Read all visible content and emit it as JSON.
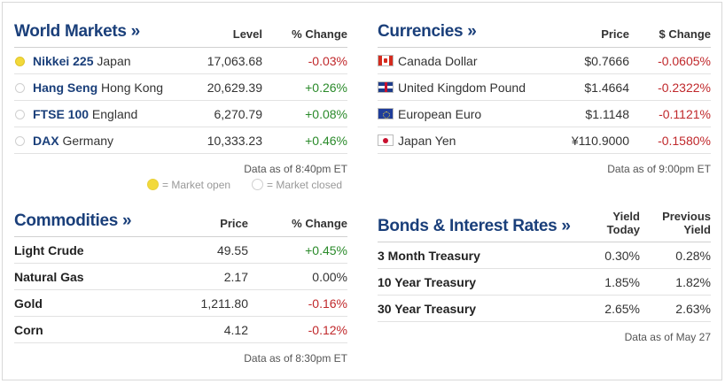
{
  "world_markets": {
    "title": "World Markets »",
    "col_level": "Level",
    "col_change": "% Change",
    "rows": [
      {
        "name": "Nikkei 225",
        "country": "Japan",
        "level": "17,063.68",
        "change": "-0.03%",
        "status": "open"
      },
      {
        "name": "Hang Seng",
        "country": "Hong Kong",
        "level": "20,629.39",
        "change": "+0.26%",
        "status": "closed"
      },
      {
        "name": "FTSE 100",
        "country": "England",
        "level": "6,270.79",
        "change": "+0.08%",
        "status": "closed"
      },
      {
        "name": "DAX",
        "country": "Germany",
        "level": "10,333.23",
        "change": "+0.46%",
        "status": "closed"
      }
    ],
    "note": "Data as of 8:40pm ET",
    "legend_open": "= Market open",
    "legend_closed": "= Market closed"
  },
  "currencies": {
    "title": "Currencies »",
    "col_price": "Price",
    "col_change": "$ Change",
    "rows": [
      {
        "country": "Canada",
        "currency": "Dollar",
        "price": "$0.7666",
        "change": "-0.0605%",
        "flag": "canada-flag-icon"
      },
      {
        "country": "United Kingdom",
        "currency": "Pound",
        "price": "$1.4664",
        "change": "-0.2322%",
        "flag": "uk-flag-icon"
      },
      {
        "country": "European",
        "currency": "Euro",
        "price": "$1.1148",
        "change": "-0.1121%",
        "flag": "eu-flag-icon"
      },
      {
        "country": "Japan",
        "currency": "Yen",
        "price": "¥110.9000",
        "change": "-0.1580%",
        "flag": "japan-flag-icon"
      }
    ],
    "note": "Data as of 9:00pm ET"
  },
  "commodities": {
    "title": "Commodities »",
    "col_price": "Price",
    "col_change": "% Change",
    "rows": [
      {
        "name": "Light Crude",
        "price": "49.55",
        "change": "+0.45%"
      },
      {
        "name": "Natural Gas",
        "price": "2.17",
        "change": "0.00%"
      },
      {
        "name": "Gold",
        "price": "1,211.80",
        "change": "-0.16%"
      },
      {
        "name": "Corn",
        "price": "4.12",
        "change": "-0.12%"
      }
    ],
    "note": "Data as of 8:30pm ET"
  },
  "bonds": {
    "title": "Bonds & Interest Rates »",
    "col_yield_1": "Yield",
    "col_yield_2": "Today",
    "col_prev_1": "Previous",
    "col_prev_2": "Yield",
    "rows": [
      {
        "name": "3 Month Treasury",
        "yield": "0.30%",
        "previous": "0.28%"
      },
      {
        "name": "10 Year Treasury",
        "yield": "1.85%",
        "previous": "1.82%"
      },
      {
        "name": "30 Year Treasury",
        "yield": "2.65%",
        "previous": "2.63%"
      }
    ],
    "note": "Data as of May 27"
  },
  "colors": {
    "title": "#1a3f7a",
    "positive": "#2a8a2a",
    "negative": "#c0282b",
    "market_open": "#f2d93a"
  }
}
